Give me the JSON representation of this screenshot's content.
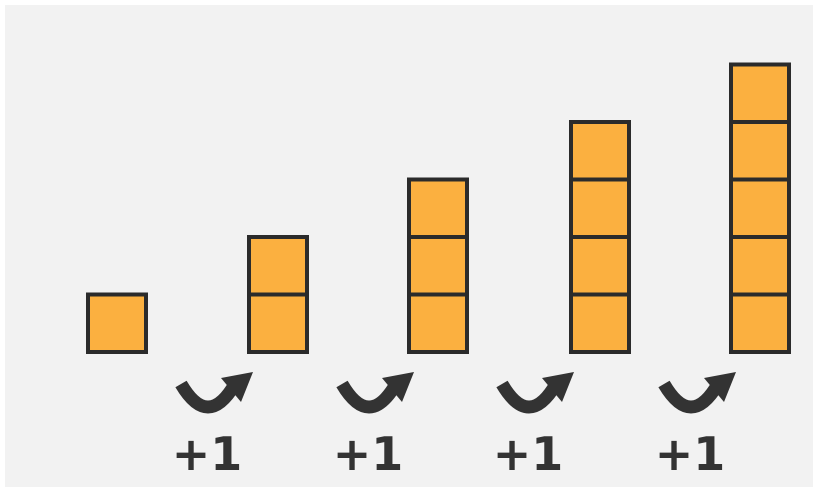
{
  "colors": {
    "background": "#f2f2f2",
    "block_fill": "#fbb040",
    "block_stroke": "#2b2b2b",
    "arrow": "#333333",
    "label": "#333333"
  },
  "icons": {
    "arrow": "curved-arrow-icon"
  },
  "columns": [
    {
      "blocks": 1
    },
    {
      "blocks": 2
    },
    {
      "blocks": 3
    },
    {
      "blocks": 4
    },
    {
      "blocks": 5
    }
  ],
  "steps": [
    {
      "label": "+1"
    },
    {
      "label": "+1"
    },
    {
      "label": "+1"
    },
    {
      "label": "+1"
    }
  ]
}
